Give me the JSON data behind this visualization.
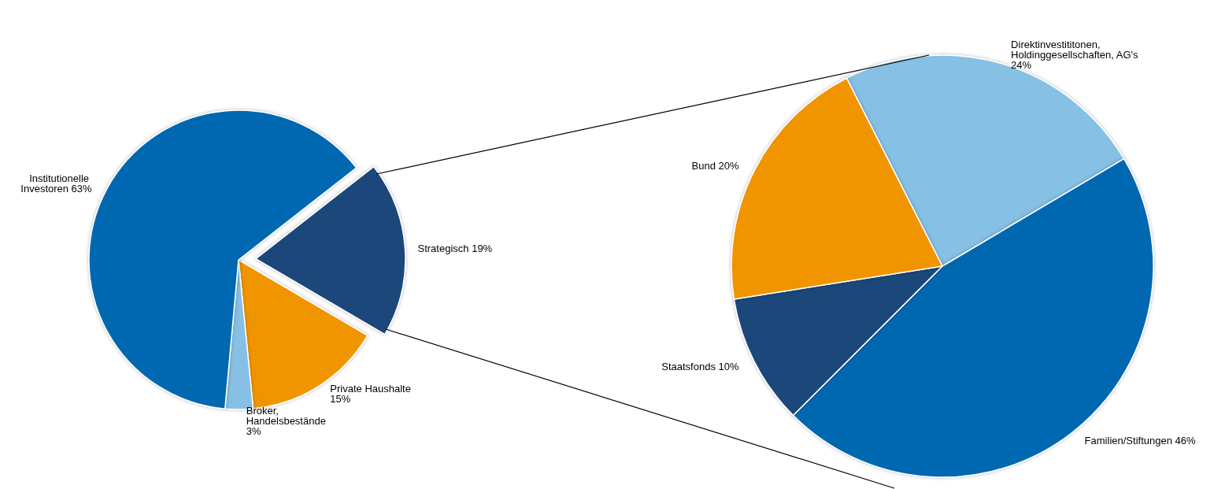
{
  "chart_data": [
    {
      "type": "pie",
      "categories": [
        "Strategisch",
        "Private Haushalte",
        "Broker, Handelsbestände",
        "Institutionelle Investoren"
      ],
      "values": [
        19,
        15,
        3,
        63
      ],
      "value_labels": [
        "19%",
        "15%",
        "3%",
        "63%"
      ],
      "colors": [
        "#1f477a",
        "#f09500",
        "#86c0e4",
        "#0068b1"
      ],
      "legend": false
    },
    {
      "type": "pie",
      "categories": [
        "Direktinvestititonen, Holdinggesellschaften, AG's",
        "Familien/Stiftungen",
        "Staatsfonds",
        "Bund"
      ],
      "values": [
        24,
        46,
        10,
        20
      ],
      "value_labels": [
        "24%",
        "46%",
        "10%",
        "20%"
      ],
      "colors": [
        "#86c0e4",
        "#0068b1",
        "#1f477a",
        "#f09500"
      ],
      "legend": false
    }
  ]
}
